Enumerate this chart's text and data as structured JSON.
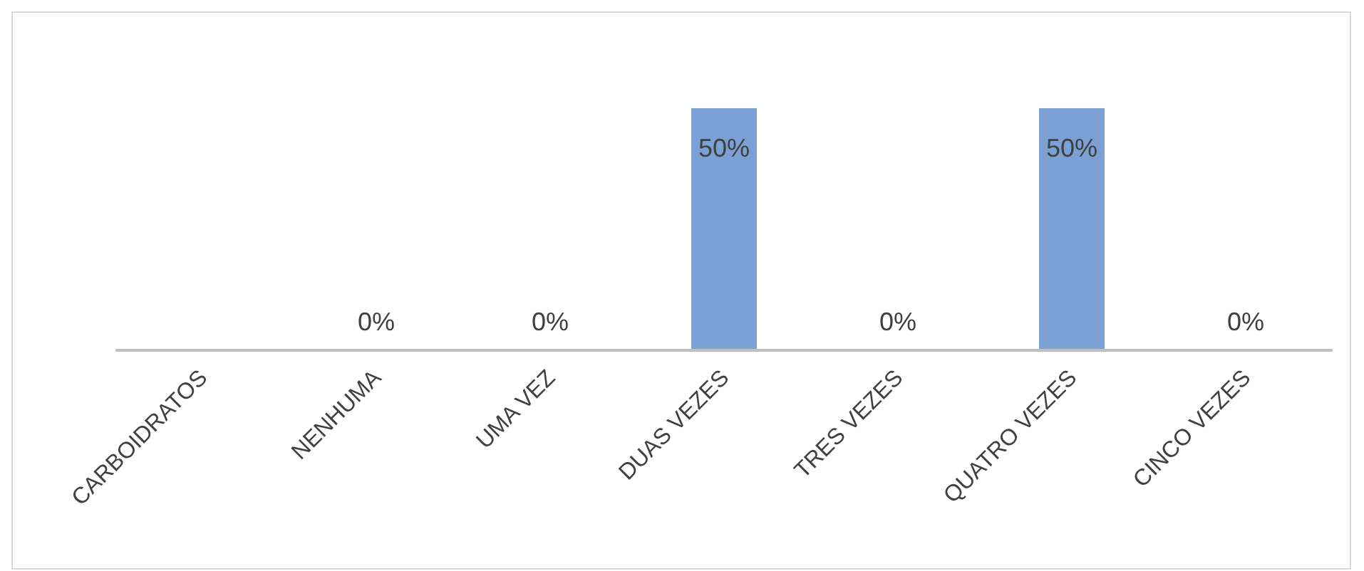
{
  "chart_data": {
    "type": "bar",
    "categories": [
      "CARBOIDRATOS",
      "NENHUMA",
      "UMA VEZ",
      "DUAS VEZES",
      "TRES VEZES",
      "QUATRO VEZES",
      "CINCO VEZES"
    ],
    "values": [
      null,
      0,
      0,
      50,
      0,
      50,
      0
    ],
    "value_labels": [
      null,
      "0%",
      "0%",
      "50%",
      "0%",
      "50%",
      "0%"
    ],
    "color": "#7ba0d4",
    "grid": false,
    "legend": false
  }
}
